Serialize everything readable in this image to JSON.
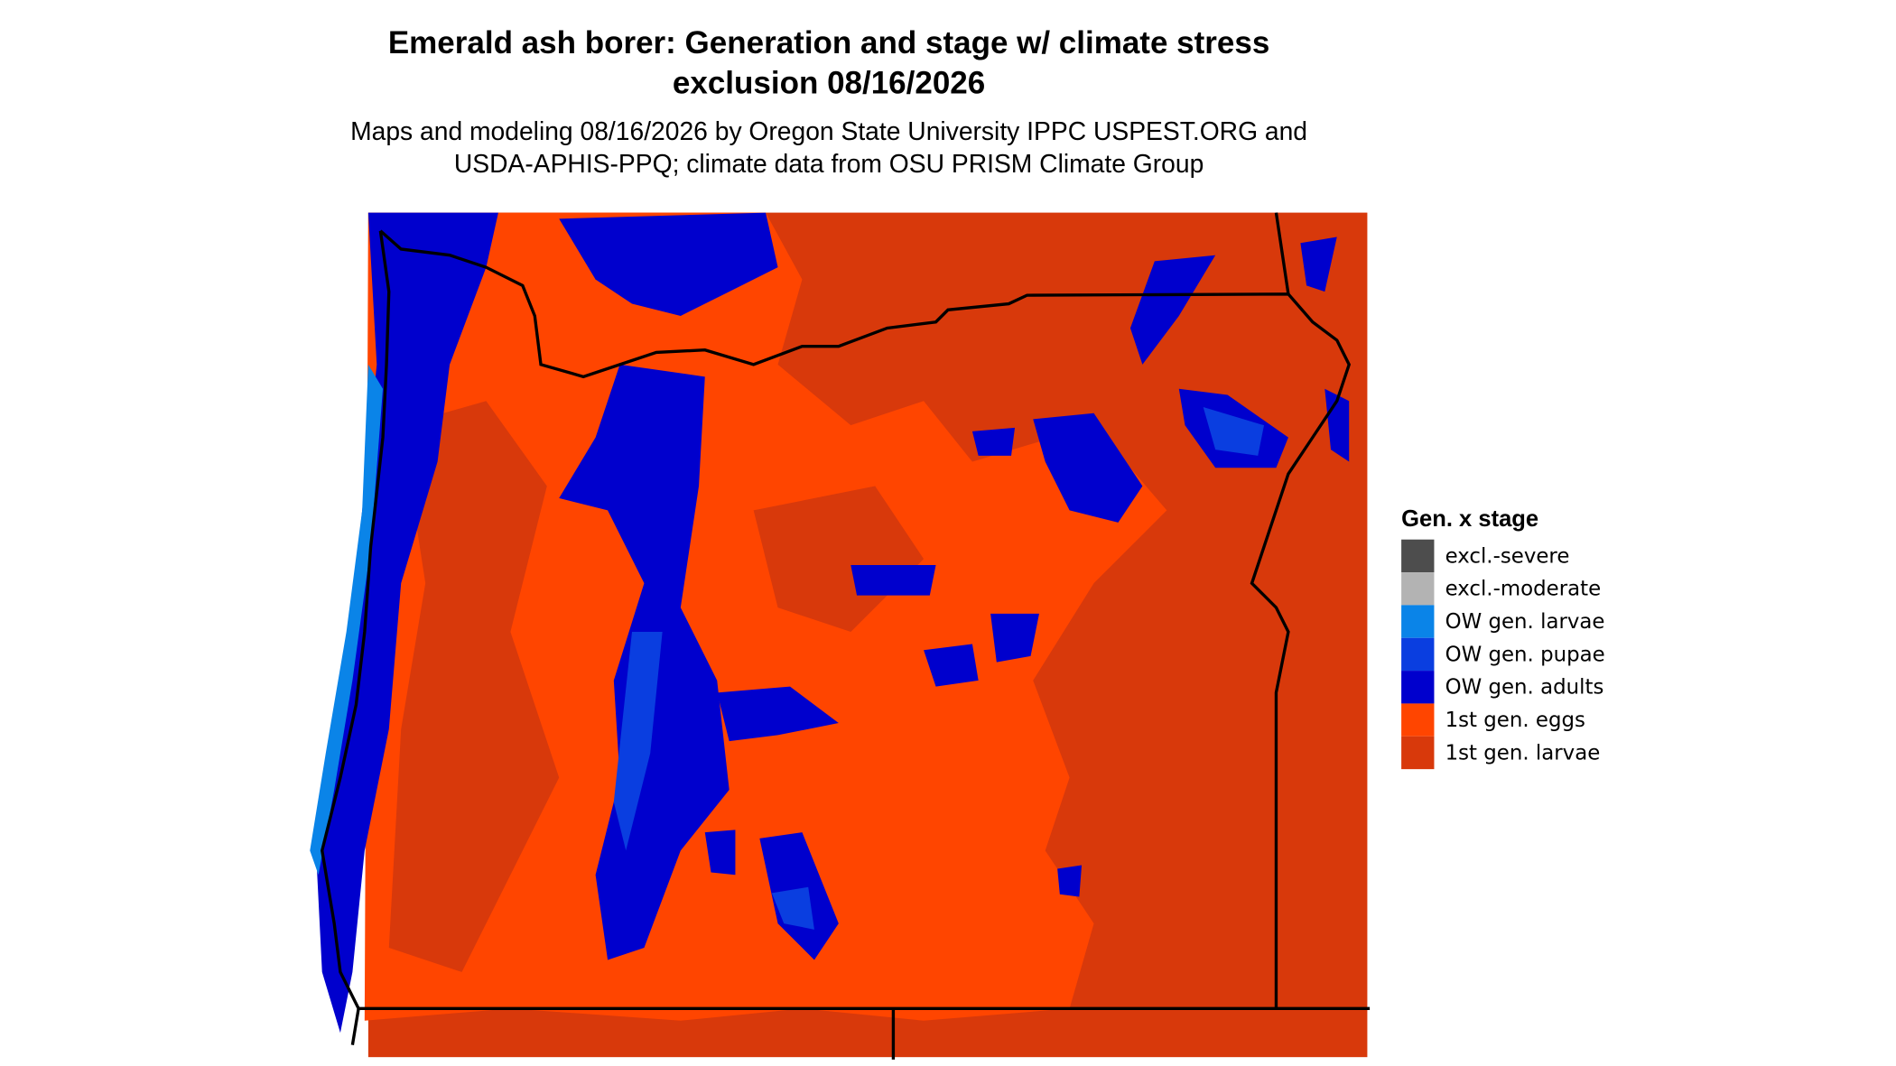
{
  "title": [
    "Emerald ash borer: Generation and stage w/ climate stress",
    "exclusion 08/16/2026"
  ],
  "subtitle": [
    "Maps and modeling 08/16/2026 by Oregon State University IPPC USPEST.ORG and",
    "USDA-APHIS-PPQ; climate data from OSU PRISM Climate Group"
  ],
  "legend": {
    "title": "Gen. x stage",
    "items": [
      {
        "label": "excl.-severe",
        "color": "#4d4d4d"
      },
      {
        "label": "excl.-moderate",
        "color": "#b3b3b3"
      },
      {
        "label": "OW gen. larvae",
        "color": "#0a84e8"
      },
      {
        "label": "OW gen. pupae",
        "color": "#0a3ee0"
      },
      {
        "label": "OW gen. adults",
        "color": "#0000cd"
      },
      {
        "label": "1st gen. eggs",
        "color": "#ff4500"
      },
      {
        "label": "1st gen. larvae",
        "color": "#d8390b"
      }
    ]
  }
}
